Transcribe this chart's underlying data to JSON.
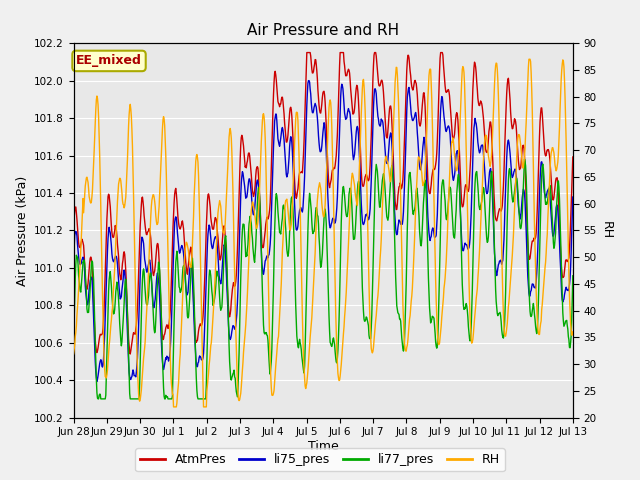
{
  "title": "Air Pressure and RH",
  "xlabel": "Time",
  "ylabel_left": "Air Pressure (kPa)",
  "ylabel_right": "RH",
  "annotation": "EE_mixed",
  "ylim_left": [
    100.2,
    102.2
  ],
  "ylim_right": [
    20,
    90
  ],
  "yticks_left": [
    100.2,
    100.4,
    100.6,
    100.8,
    101.0,
    101.2,
    101.4,
    101.6,
    101.8,
    102.0,
    102.2
  ],
  "yticks_right": [
    20,
    25,
    30,
    35,
    40,
    45,
    50,
    55,
    60,
    65,
    70,
    75,
    80,
    85,
    90
  ],
  "colors": {
    "AtmPres": "#cc0000",
    "li75_pres": "#0000cc",
    "li77_pres": "#00aa00",
    "RH": "#ffaa00"
  },
  "legend_labels": [
    "AtmPres",
    "li75_pres",
    "li77_pres",
    "RH"
  ],
  "fig_bg_color": "#f0f0f0",
  "plot_bg_color": "#e8e8e8",
  "annotation_color": "#aa0000",
  "annotation_bg": "#ffffcc",
  "annotation_border": "#aaaa00",
  "x_tick_labels": [
    "Jun 28",
    "Jun 29",
    "Jun 30",
    "Jul 1",
    "Jul 2",
    "Jul 3",
    "Jul 4",
    "Jul 5",
    "Jul 6",
    "Jul 7",
    "Jul 8",
    "Jul 9",
    "Jul 10",
    "Jul 11",
    "Jul 12",
    "Jul 13"
  ],
  "n_points": 900,
  "seed": 42
}
